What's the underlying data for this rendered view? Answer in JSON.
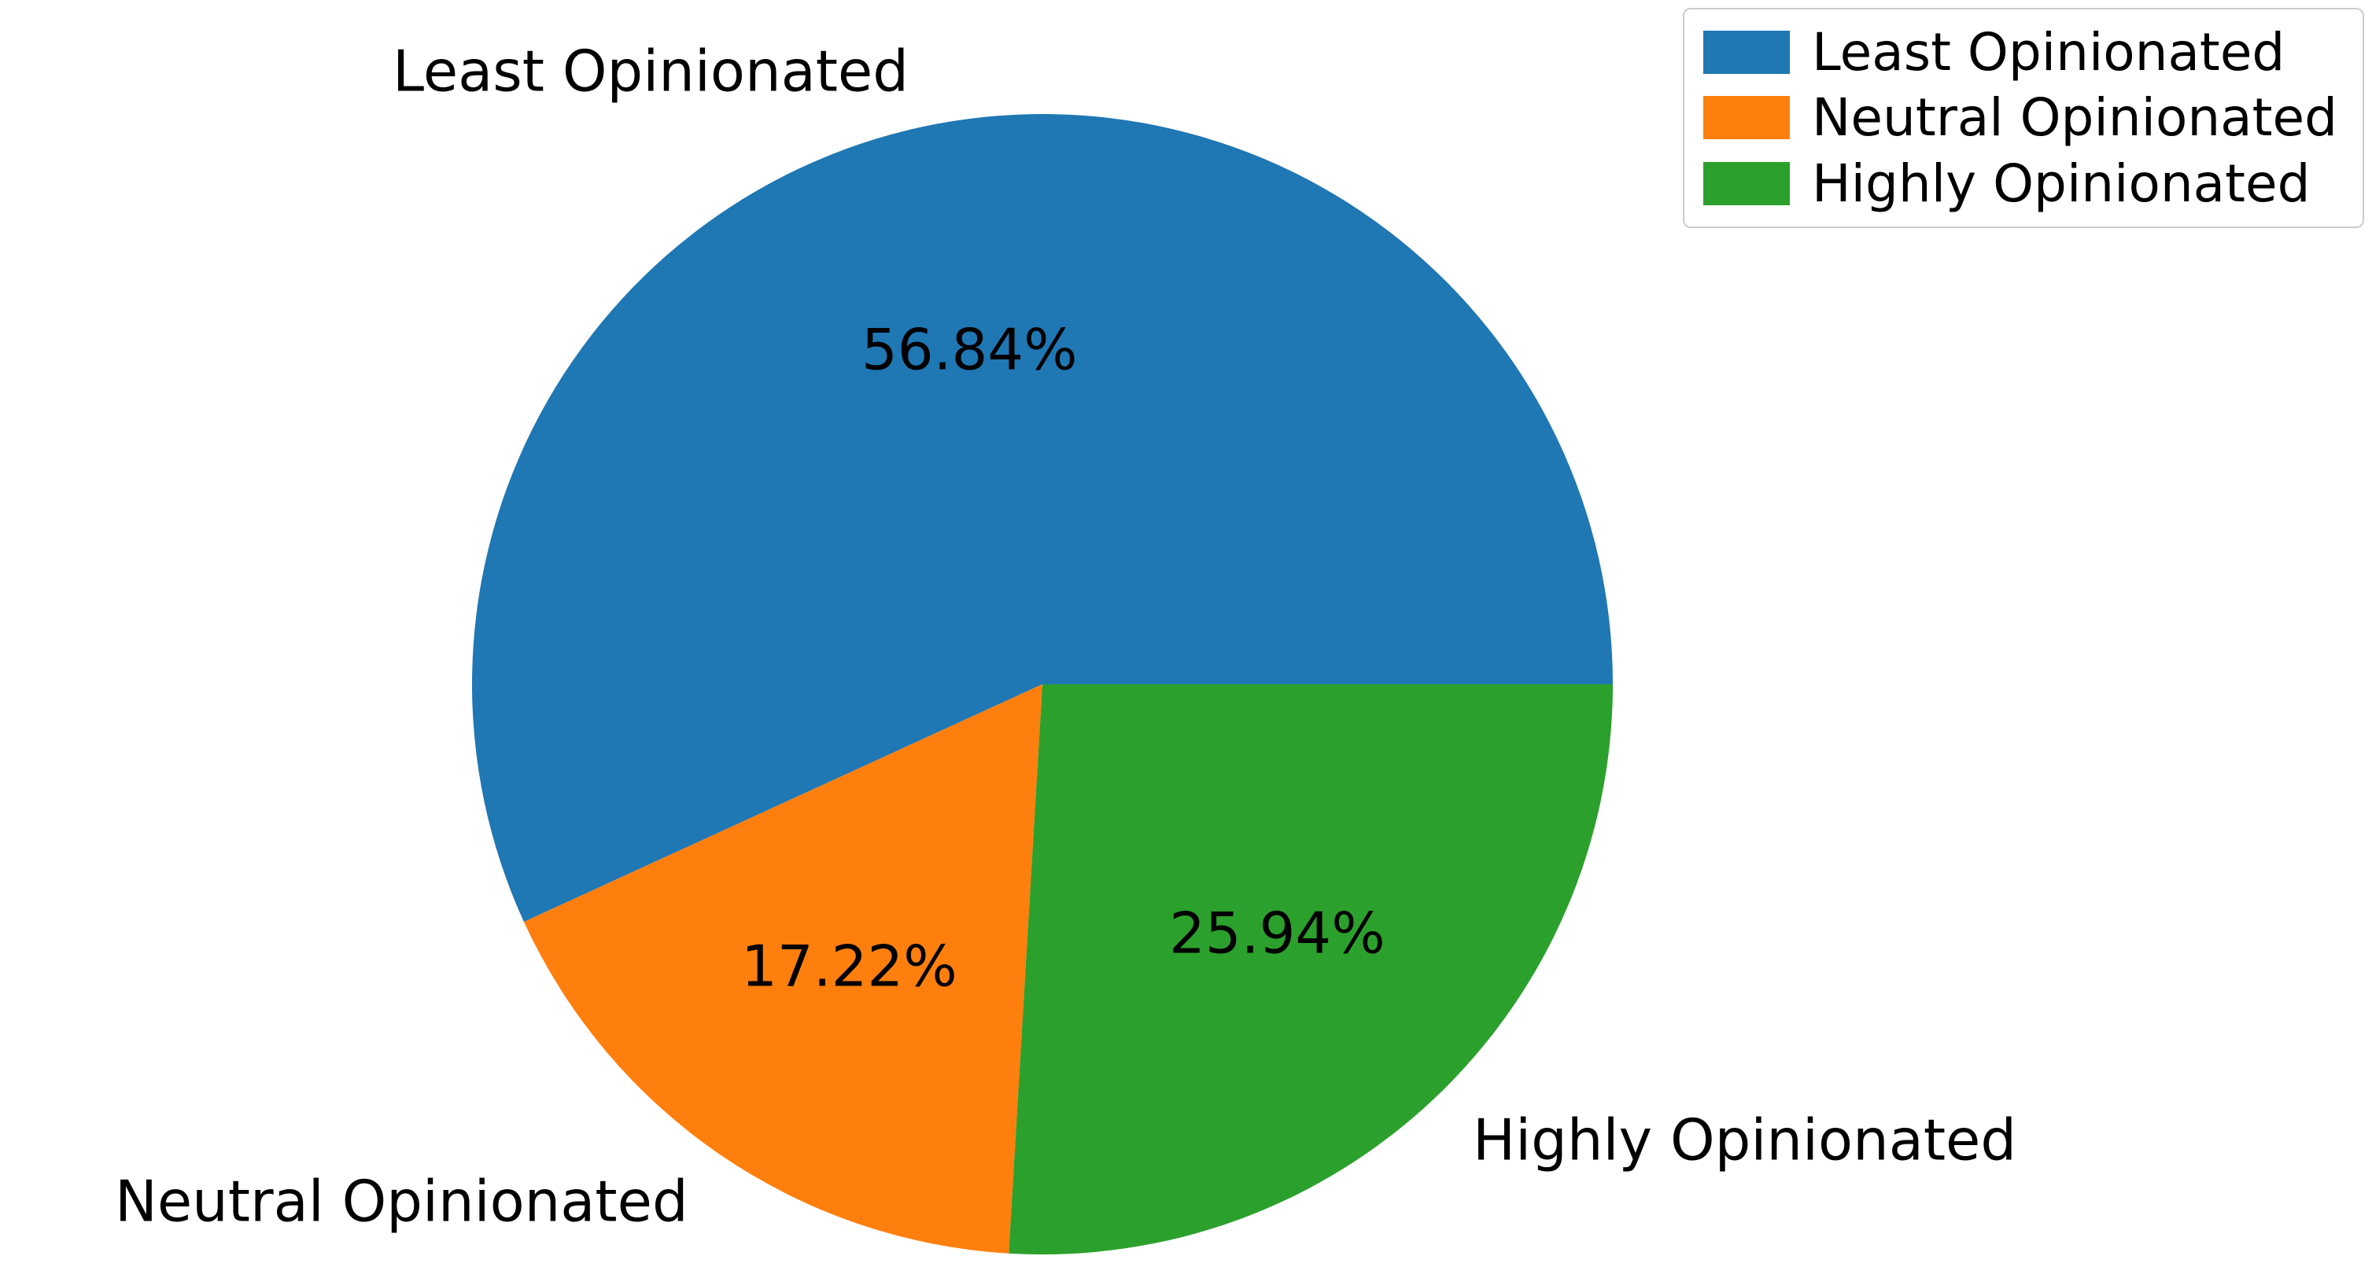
{
  "chart_data": {
    "type": "pie",
    "labels": [
      "Least Opinionated",
      "Neutral Opinionated",
      "Highly Opinionated"
    ],
    "values": [
      56.84,
      17.22,
      25.94
    ],
    "pct_labels": [
      "56.84%",
      "17.22%",
      "25.94%"
    ],
    "colors": [
      "#1f77b4",
      "#ff7f0e",
      "#2ca02c"
    ],
    "start_angle": 0,
    "direction": "counterclockwise",
    "legend": {
      "position": "upper right",
      "entries": [
        "Least Opinionated",
        "Neutral Opinionated",
        "Highly Opinionated"
      ]
    },
    "background": "#ffffff",
    "title": "",
    "annotations": []
  }
}
